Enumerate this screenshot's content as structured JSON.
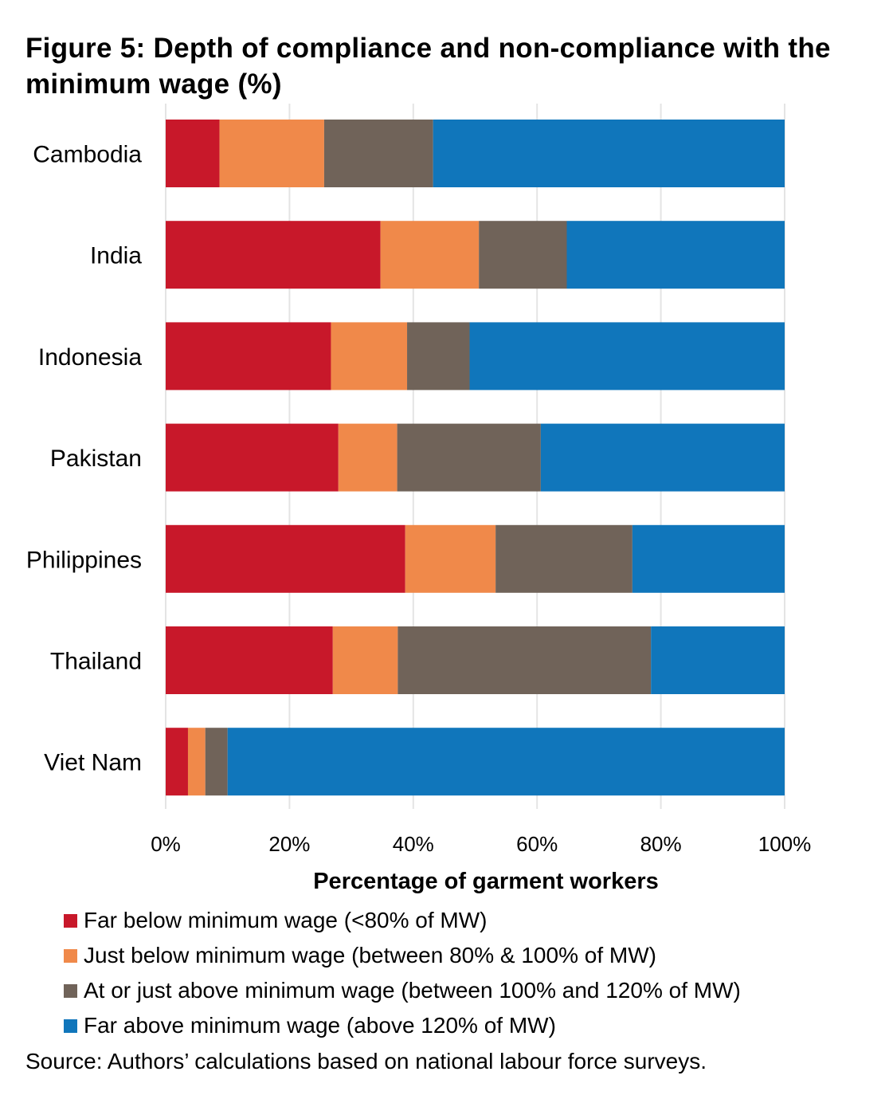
{
  "chart_data": {
    "type": "bar",
    "orientation": "horizontal",
    "stacked": true,
    "title": "Figure 5: Depth of compliance and non-compliance with the minimum wage (%)",
    "xlabel": "Percentage of garment workers",
    "ylabel": "",
    "xlim": [
      0,
      100
    ],
    "xticks": [
      0,
      20,
      40,
      60,
      80,
      100
    ],
    "xtick_labels": [
      "0%",
      "20%",
      "40%",
      "60%",
      "80%",
      "100%"
    ],
    "grid": "vertical",
    "legend_position": "bottom",
    "categories": [
      "Cambodia",
      "India",
      "Indonesia",
      "Pakistan",
      "Philippines",
      "Thailand",
      "Viet Nam"
    ],
    "series": [
      {
        "name": "Far below minimum wage (<80% of MW)",
        "color": "#c8182a",
        "values": [
          8.7,
          34.7,
          26.7,
          27.9,
          38.7,
          27.0,
          3.6
        ]
      },
      {
        "name": "Just below minimum wage (between 80% & 100% of MW)",
        "color": "#f0894a",
        "values": [
          16.9,
          15.9,
          12.3,
          9.5,
          14.6,
          10.5,
          2.8
        ]
      },
      {
        "name": "At or just above minimum wage (between 100% and 120% of MW)",
        "color": "#706359",
        "values": [
          17.6,
          14.2,
          10.1,
          23.2,
          22.1,
          40.9,
          3.6
        ]
      },
      {
        "name": "Far above minimum wage (above 120% of MW)",
        "color": "#1076bb",
        "values": [
          56.8,
          35.2,
          50.9,
          39.4,
          24.6,
          21.6,
          90.0
        ]
      }
    ],
    "source": "Source: Authors’ calculations based on national labour force surveys."
  }
}
